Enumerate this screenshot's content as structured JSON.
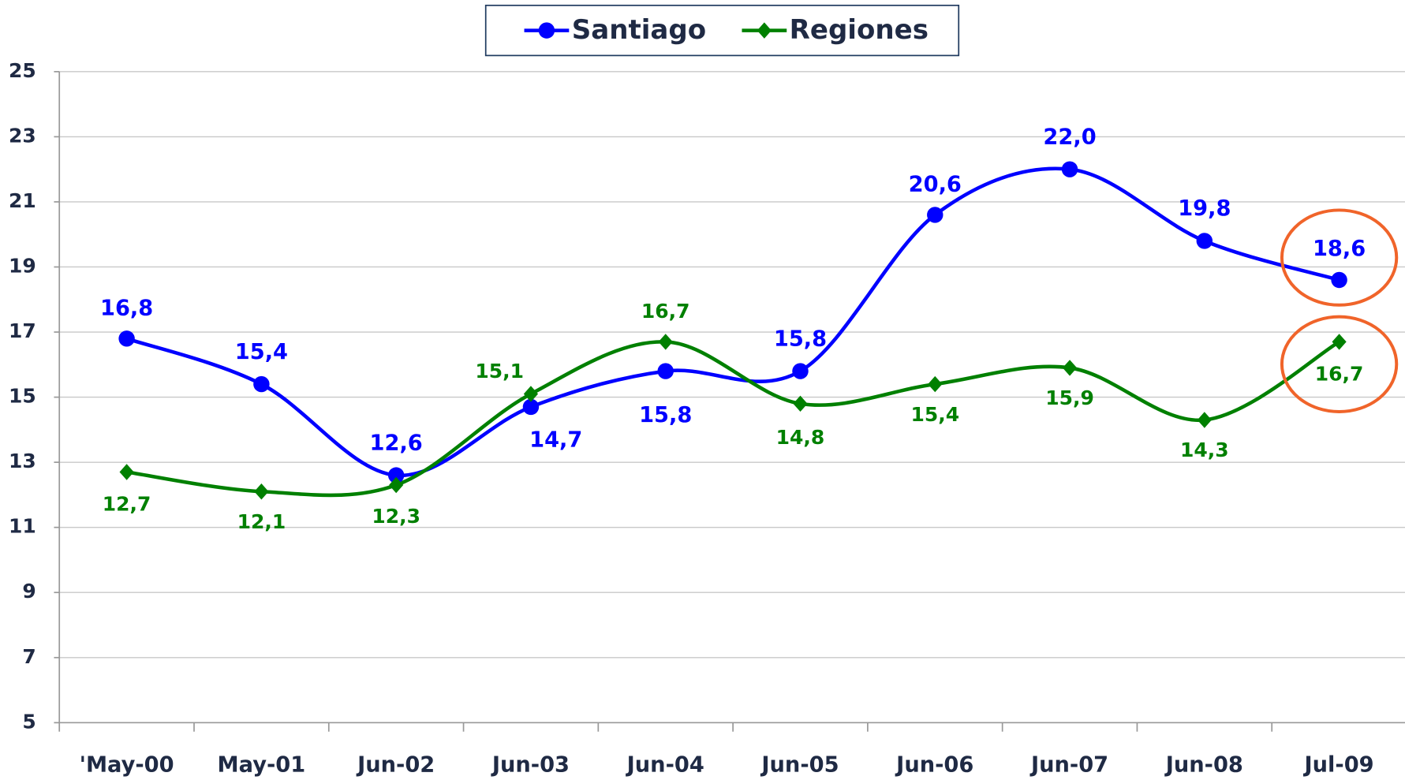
{
  "chart_data": {
    "type": "line",
    "categories": [
      "'May-00",
      "May-01",
      "Jun-02",
      "Jun-03",
      "Jun-04",
      "Jun-05",
      "Jun-06",
      "Jun-07",
      "Jun-08",
      "Jul-09"
    ],
    "series": [
      {
        "name": "Santiago",
        "color": "#0000ff",
        "marker": "circle",
        "values": [
          16.8,
          15.4,
          12.6,
          14.7,
          15.8,
          15.8,
          20.6,
          22.0,
          19.8,
          18.6
        ],
        "value_labels": [
          "16,8",
          "15,4",
          "12,6",
          "14,7",
          "15,8",
          "15,8",
          "20,6",
          "22,0",
          "19,8",
          "18,6"
        ]
      },
      {
        "name": "Regiones",
        "color": "#008000",
        "marker": "diamond",
        "values": [
          12.7,
          12.1,
          12.3,
          15.1,
          16.7,
          14.8,
          15.4,
          15.9,
          14.3,
          16.7
        ],
        "value_labels": [
          "12,7",
          "12,1",
          "12,3",
          "15,1",
          "16,7",
          "14,8",
          "15,4",
          "15,9",
          "14,3",
          "16,7"
        ]
      }
    ],
    "ylim": [
      5,
      25
    ],
    "yticks": [
      5,
      7,
      9,
      11,
      13,
      15,
      17,
      19,
      21,
      23,
      25
    ],
    "grid": true,
    "legend": "top",
    "smooth": true
  }
}
